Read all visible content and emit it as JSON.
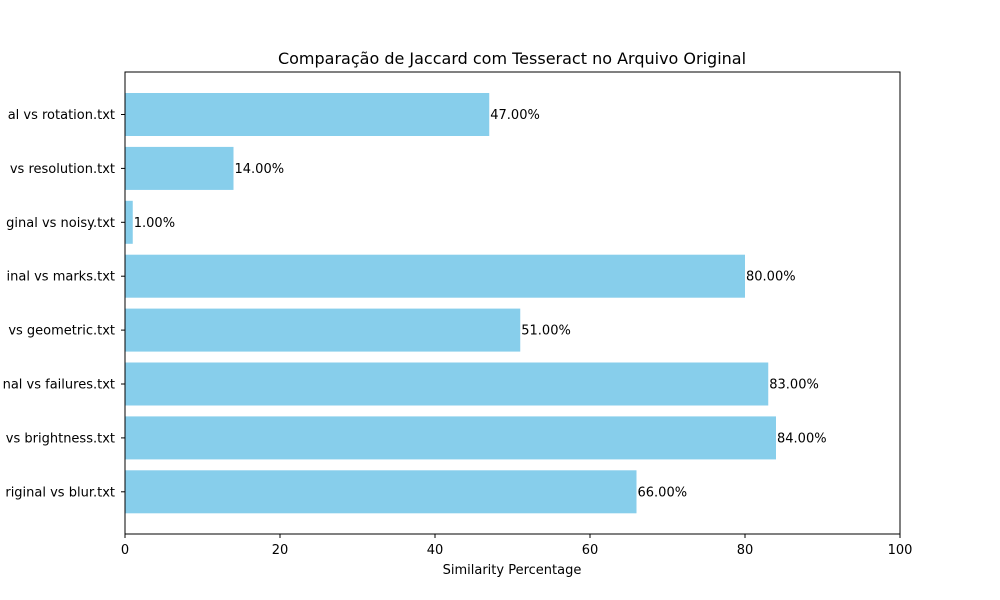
{
  "chart_data": {
    "type": "bar",
    "orientation": "horizontal",
    "title": "Comparação de Jaccard com Tesseract no Arquivo Original",
    "xlabel": "Similarity Percentage",
    "ylabel": "",
    "xlim": [
      0,
      100
    ],
    "x_ticks": [
      0,
      20,
      40,
      60,
      80,
      100
    ],
    "grid": false,
    "bar_color": "#87ceeb",
    "categories": [
      "al vs rotation.txt",
      "vs resolution.txt",
      "ginal vs noisy.txt",
      "inal vs marks.txt",
      "vs geometric.txt",
      "nal vs failures.txt",
      "vs brightness.txt",
      "riginal vs blur.txt"
    ],
    "values": [
      47,
      14,
      1,
      80,
      51,
      83,
      84,
      66
    ],
    "data_labels": [
      "47.00%",
      "14.00%",
      "1.00%",
      "80.00%",
      "51.00%",
      "83.00%",
      "84.00%",
      "66.00%"
    ]
  }
}
